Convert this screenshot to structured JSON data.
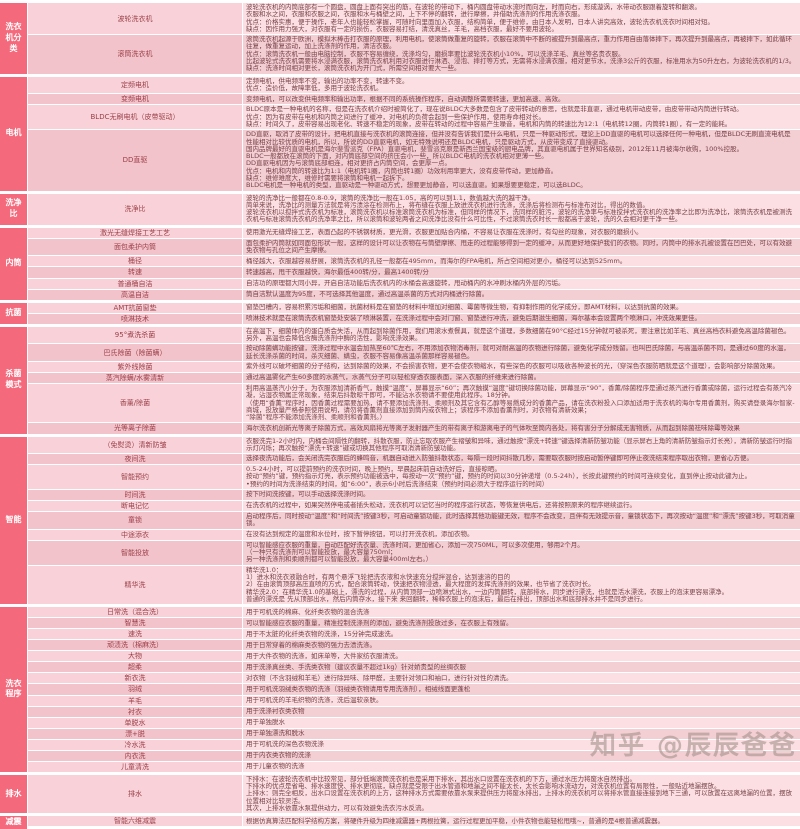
{
  "colors": {
    "category_bg": "#f4697b",
    "row_light_bg": "#fbdfe2",
    "row_dark_bg": "#f3ced3",
    "label_text": "#9c3f49",
    "content_text": "#774349"
  },
  "watermark": {
    "text": "知乎 @辰辰爸爸"
  },
  "groups": [
    {
      "category": "洗衣机分类",
      "rows": [
        {
          "label": "波轮洗衣机",
          "content": "波轮洗衣机的内筒底部有一个圆盘，圆盘上面有突出的筋，在波轮的带动下，桶内圆盘带动水流时而向左，时而向右，形成漩涡，水带动衣服跟着旋转和翻滚。\n衣服和水之间，衣服和衣服之间，衣服和水与桶壁之间，上下不停的翻转，进行摩擦，并借助洗涤剂的作用洗涤衣服。\n优点：价格实惠，便于操作，老年人也能轻松掌握，可随时向里面加入衣服，结构简单，便于维修，由日本人发明，日本人讲究高效，波轮洗衣机洗衣时间相对短。\n缺点：因作用力强大，对衣服有一定的损伤，衣服容易打结，清洗真丝，羊毛，高档衣服，最好不要用波轮。"
        },
        {
          "label": "滚筒洗衣机",
          "content": "滚筒洗衣机起源于欧洲，模拟木棒击打衣服的原理，利用电机，使滚筒做重复的旋转，衣服在滚筒中不断的被提升到最高点，重力作用自由落体摔下，再次提升到最高点，再被摔下，如此循环往复，做重复运动，加上洗涤剂的作用，清洁衣服。\n优点：滚筒洗衣机一般由电脑控制，衣服不容易缠绕，洗涤均匀，磨损率要比波轮洗衣机小10%，可以洗涤羊毛、真丝等名贵衣服。\n比起波轮式洗衣机需要将水浸满衣服，滚筒洗衣机利用对衣服进行淋洒、浸泡、摔打等方式，无需将水浸满衣服，相对更节水，洗涤3公斤的衣服，标准用水为50升左右，为波轮洗衣机的1/3。\n缺点：洗涤时间相对更长，滚筒洗衣机为开门式，所需空间相对要大一些。"
        }
      ]
    },
    {
      "category": "电机",
      "rows": [
        {
          "label": "定频电机",
          "content": "定频电机，供电频率不变，输出的功率不变，转速不变。\n优点：造价低，故障率低，多用于波轮洗衣机。"
        },
        {
          "label": "变频电机",
          "content": "变频电机，可以改变供电频率和输出功率，根据不同的系统操作程序，自动调整所需要转速，更加高速、高效。"
        },
        {
          "label": "BLDC无刷电机（皮带驱动）",
          "content": "BLDC原本是一种电机的名称，但是在洗衣机介绍时被简化了，现在说BLDC大多数是包含了皮带转动的意思，也就是非直驱，通过电机带动皮带，由皮带带动内筒进行转动。\n优点：因为有皮带在电机和内筒之间进行了缓冲，对电机的负荷会起到一些保护作用，使用寿命相对长。\n缺点：时间久了，皮带容易出现老化、转速不稳定的现象，皮带在转动的过程中容易产生噪音，电机和内筒的转速比为12:1（电机转12圈，内筒转1圈），有一定的能耗。"
        },
        {
          "label": "DD直驱",
          "content": "DD直驱，取消了皮带的设计，把电机直接与洗衣机的滚筒连接，但并没有告诉我们是什么电机，只是一种驱动形式，理论上DD直驱的电机可以选择任何一种电机，但是BLDC无刷直流电机是性能相对比较优质的电机，所以，所说的DD直驱电机，如无特殊说明还是BLDC电机，只是驱动方式，从皮带变成了直接驱动。\n国内品牌最好的直驱电机是海尔斐雪派克（FPA）直驱电机，斐雪派克原是新西兰国宝级的厨电品牌，其直驱电机属于世界知名级别，2012年11月被海尔收购，100%控股。\nBLDC一般都放在滚筒的下面，对内筒底部空间的挤压会小一些，所以BLDC电机的洗衣机相对更薄一些。\nDD直驱电机因为与滚筒底部相连，相对更挤占内筒空间，会更厚一点。\n优点：电机和内筒的转速比为1:1（电机转1圈，内筒也转1圈）功效利用率更大，没有皮带传动，更加静音。\n缺点：维修难度大，维修时需要将滚筒和电机一起拆下。\nBLDC电机是一种电机的类型，直驱动是一种驱动方式，想要更加静音，可以选直驱。如果想要更稳定，可以选BLDC。"
        }
      ]
    },
    {
      "category": "洗净比",
      "rows": [
        {
          "label": "洗净比",
          "content": "波轮的洗净比一般都在0.8-0.9，滚筒的洗净比一般在1.05，高的可以到1.1，数值越大洗的越干净。\n简单来说，洗净比的测量方法就是将污渍涂在检测布上，将布缝在衣服上放进洗衣机进行洗涤，洗涤后将检测布与标准布对比，得出的数值。\n波轮洗衣机以搅拌式洗衣机为标准，滚筒洗衣机以标准滚筒洗衣机为标准，但同样的情况下，洗同样的脏污，波轮的洗净率与标准搅拌式洗衣机的洗净率之比即为洗净比，滚筒洗衣机是被测洗衣机与标准滚筒洗衣机的洗净率之比，所以滚筒和波轮两者之间洗净比没有什么可比性，不过滚筒洗衣时长一般都高于波轮，洗的久会相对更干净一些。"
        }
      ]
    },
    {
      "category": "内筒",
      "rows": [
        {
          "label": "激光无缝焊接工艺工艺",
          "content": "使用激光无缝焊接工艺，表面凸起的不锈钢材质，更光滑，衣服更加贴合内桶，不容易让衣服在洗涤时，有勾丝的现象，对衣服的磨损小。"
        },
        {
          "label": "面包柔护内筒",
          "content": "面包柔护内筒就如同面包形状一般，这样的设计可以让衣物在与筒壁摩擦、甩走的过程能够得到一定的缓冲，从而更好地保护我们的衣物。同时，内筒中的排水孔被设置在凹巴处，可以有效避免衣物与孔位之间产生摩擦。"
        },
        {
          "label": "桶径",
          "content": "桶径越大，衣服越容易舒展，滚筒洗衣机的孔径一般都在495mm，而海尔的FPA电机，所占空间相对更小，桶径可以达到525mm。"
        },
        {
          "label": "转速",
          "content": "转速越高，甩干衣服越快，海尔最低400转/分，最高1400转/分"
        },
        {
          "label": "普通桶自洁",
          "content": "自洁功的原理都大同小异，开启自洁功能后洗衣机内的水桶会高速旋转，甩动桶内的水冲刷水桶内外层的污垢。"
        },
        {
          "label": "高温自洁",
          "content": "筒自洁默认温度为95度，不可选择其他温度，通过高温杀菌的方式对内桶进行除菌。"
        }
      ]
    },
    {
      "category": "抗菌",
      "rows": [
        {
          "label": "AMT抗菌窗垫",
          "content": "窗垫凹槽内，容易积累污垢和细菌，抗菌材料是在窗垫的材料中增加对细菌、霉菌等微生物，有抑制作用的化学成分，即AMT材料，以达到抗菌的效果。"
        },
        {
          "label": "喷淋技术",
          "content": "喷淋技术就是在滚筒洗衣机窗垫处安装了喷淋装置，在洗涤过程中会对门窗、窗垫进行冲洗，避免后期滋生细菌，海尔基本会设置两个喷淋口，冲洗效果更佳。"
        }
      ]
    },
    {
      "category": "杀菌模式",
      "rows": [
        {
          "label": "95°煮洗杀菌",
          "content": "在高温下，细菌体内的蛋白质会失活，从而起到除菌作用，我们用滚水煮餐具，就是这个道理，多数细菌在90°C经过15分钟就可被杀死，要注意比如羊毛、真丝高档衣料避免高温除菌褪色。另外，高温也会降低含酶洗涤剂中酶的活性，影响洗涤效果。"
        },
        {
          "label": "巴氏除菌（除菌螨）",
          "content": "按动除菌螨功能按键，洗涤过程中水温会加热至60℃左右，不用添加衣物消毒剂，就可对耐高温的衣物进行除菌，避免化学成分残留。也叫巴氏除菌，与高温杀菌不同，是通过60度的水温，延长洗涤杀菌的时间，杀灭细菌、螨虫，衣服不容易像高温杀菌那样容易褪色。"
        },
        {
          "label": "紫外线除菌",
          "content": "紫外线可以破坏细菌的分子结构，达到除菌的效果，不会损害衣物，更不会使衣物缩水，有些深色的衣服可以吸收各种波长的光，（穿深色衣服防晒就是这个道理），会影响部分除菌效果。"
        },
        {
          "label": "蒸汽除螨/水雾清新",
          "content": "通过高温雾化产生60多度的水蒸气，水蒸气分子可以轻松穿透衣服表面，深入衣服的纤维来进行除菌。"
        },
        {
          "label": "香薰/除菌",
          "content": "利用高温蒸汽小分子，为衣服添加清新香气，触摸“温度”，屏幕显示“60”；再次触摸“温度”键切换除菌功能，屏幕显示“90”，香薰/除菌程序是通过蒸汽进行香薰或除菌，运行过程会有蒸汽冷凝，沾湿衣物属正常现象，结束后抖散晾干即可，不能沾水衣物请不要使用此程序。18分钟。\n（使用“香薰”程序时，因香薰过程需要加热，请不要添加洗涤剂、柔顺剂及其它含有乙醇等易燃成分的香薰产品，请在洗衣粉投入口添加适用于洗衣机的海尔专用香薰剂，购买请登录海尔智家-商城，投放量严格参照使用说明，请勿将香薰剂直接添加到筒内或衣物上；该程序不添加香薰剂时，对衣物有清新效果；\n“除菌”程序不能添加洗涤剂、柔顺剂和香薰剂。）"
        },
        {
          "label": "光等离子除菌",
          "content": "海尔洗衣机创新光等离子除菌方式，高效风扇将光等离子发射器产生的带有离子和游离电子的气体吹至筒内各处，将有害分子分解成无害物质，从而起到除菌祛味除霉等效果"
        }
      ]
    },
    {
      "category": "智能",
      "rows": [
        {
          "label": "（免熨烫）清新防皱",
          "content": "衣服洗完1-2小时内，内桶会间隔性的翻转，抖散衣服，防止忘取衣服产生褶皱和异味，通过触按“漂洗+转速”键选择清新防皱功能（显示屏右上角的清新防皱指示灯长亮），清新防皱运行时指示灯闪烁；再次触按“漂洗+转速”键或切换其他程序可取消清新防皱功能。"
        },
        {
          "label": "夜间洗",
          "content": "选择夜洗功能后，会关闭洗完衣服后的蜂鸣音，机器自动进入防皱抖散状态，每隔一段时间抖散几秒，需要取衣服时按启动暂停键即可停止夜洗结束程序取出衣物，更省心方便。"
        },
        {
          "label": "智能预约",
          "content": "0.5-24小时，可以提前预约的洗衣时间，晚上预约，早晨起床前自动洗好后，直接晾晒。\n按动“预约”键，预约指示灯亮，表示预约功能被选中，每按动一次“预约”键，预约的时间以30分钟递增（0.5-24h），长按此键预约的时间可连续变化，直到停止按动此键为止。\n•预约的时间为洗涤结束的时间，如“6:00”，表示6小时后洗涤结束（预约时间必须大于程序运行的时间）"
        },
        {
          "label": "时间洗",
          "content": "按下时间洗按键，可以手动选择洗涤时间。"
        },
        {
          "label": "断电记忆",
          "content": "在洗衣机的过程中，如果突然停电或者插头松动，洗衣机可以记忆当时的程序运行状态，等恢复供电后，还将按照原来的程序继续运行。"
        },
        {
          "label": "童锁",
          "content": "启动程序后，同时按动“温度”和“时间洗”按键3秒，可启动童锁功能，此时选择其他功能键无效，程序不会改变，且伴有无效提示音，童锁状态下，再次按动“温度”和“漂洗”按键3秒，可取消童锁。"
        },
        {
          "label": "中途添衣",
          "content": "在没有达到规定的温度和水位时，按下暂停按钮，可以打开洗衣机，添加衣物。"
        },
        {
          "label": "智能投放",
          "content": "可以智能感应衣服的重量，自动匹配好洗衣量、洗涤时间，更加省心，添加一次750ML，可以多次使用，够用2个月。\n（一种只有洗涤剂可以智能投放，最大容量750ml；\n另一种洗涤剂和柔顺剂都可以智能投放，最大容量400ml左右。）"
        },
        {
          "label": "精华洗",
          "content": "精华洗1.0：\n1）进水和洗衣液融合时，有两个悬浮飞轮把洗衣液和水快速充分搅拌混合，达到速溶的目的\n2）在由滚筒顶部高压直喷的方式，配合滚筒转动，快速把衣物浸透，最大程度的发挥洗涤剂的效果，也节省了洗衣时长。\n精华洗2.0：在精华洗1.0的基础上，漂洗的过程，从内筒顶部一边喷淋式出水，一边内筒翻转，底部排水，同步进行漂洗，也就是活水漂洗，衣服上的泡沫更容易漂净。\n普通的漂洗是 先从顶部出水，然后内筒存水，接下来 来回翻转，稀释衣服上的泡沫后，最后在排出，顶部出水和底部排水并不是同步进行。"
        }
      ]
    },
    {
      "category": "洗衣程序",
      "rows": [
        {
          "label": "日常洗（混合洗）",
          "content": "用于可机洗的棉麻、化纤类衣物的混合洗涤"
        },
        {
          "label": "智慧洗",
          "content": "可以智能感应衣服的重量，精准控制洗涤剂的添加，避免洗涤剂投放过多，在衣服上有残留。"
        },
        {
          "label": "速洗",
          "content": "用于不太脏的化纤类衣物的洗涤，15分钟完成速洗。"
        },
        {
          "label": "顽渍洗（棉麻洗）",
          "content": "用于日常穿着的棉麻类衣物的强力去渍洗涤。"
        },
        {
          "label": "大物",
          "content": "用于大件衣物的洗涤，如床单等，大件家纺衣服清洗。"
        },
        {
          "label": "超柔",
          "content": "用于洗涤真丝类、手洗类衣物（建议衣量不超过1kg）针对娇贵型的丝绸衣服"
        },
        {
          "label": "新衣洗",
          "content": "对衣物（不含羽绒和羊毛）进行除异味、除甲醛，主要针对领口和袖口，进行针对性的清洗。"
        },
        {
          "label": "羽绒",
          "content": "用于可机洗羽绒类衣物的洗涤（羽绒类衣物请用专用洗涤剂），相绒线面更蓬松"
        },
        {
          "label": "羊毛",
          "content": "用于可机洗的羊毛织物的洗涤，洗后温软亲肤。"
        },
        {
          "label": "衬衣",
          "content": "用于洗涤衬衣类衣物"
        },
        {
          "label": "单脱水",
          "content": "用于单独脱水"
        },
        {
          "label": "漂+脱",
          "content": "用于单独漂洗和脱水"
        },
        {
          "label": "冷水洗",
          "content": "用于可机洗的深色衣物洗涤"
        },
        {
          "label": "内衣洗",
          "content": "用于内衣类衣物的洗涤"
        },
        {
          "label": "儿童清洗",
          "content": "用于儿童衣物的洗涤"
        }
      ]
    },
    {
      "category": "排水",
      "rows": [
        {
          "label": "排水",
          "content": "下排水：在波轮洗衣机中比较常见，部分低端滚筒洗衣机也是采用下排水，其出水口设置在洗衣机的下方，通过水压力将废水自然排出。\n下排水的优点是省电、排水速度快、排水更彻底，缺点就是受限于出水管道和地漏之间不能太长，太长会影响水流动力，对洗衣机位置有局限性，一般贴近地漏摆放。\n上排水：则完全相反，出水口设置在洗衣机的上方，这种排水方式需要依靠水泵来提供压力将废水排出，上排水的洗衣机可以将排水管直接连接到地下三通，可以放置在远离地漏的位置，摆放位置相对比较灵活。\n其次，上排水依靠水泵提供动力，可以有效避免洗衣污水反流。"
        }
      ]
    },
    {
      "category": "减震",
      "rows": [
        {
          "label": "智能六维减震",
          "content": "根据仿真算法匹配科学结构方案，将硬件升级为四维减震器+两根拉簧，运行过程更加平稳，小件衣物也能轻松甩哦~，普通的是4根普通减震器。"
        }
      ]
    }
  ]
}
